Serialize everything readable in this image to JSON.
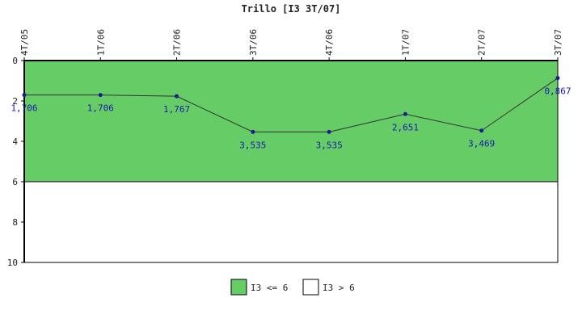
{
  "chart_data": {
    "type": "line",
    "title": "Trillo [I3 3T/07]",
    "categories": [
      "4T/05",
      "1T/06",
      "2T/06",
      "3T/06",
      "4T/06",
      "1T/07",
      "2T/07",
      "3T/07"
    ],
    "series": [
      {
        "values": [
          1.706,
          1.706,
          1.767,
          3.535,
          3.535,
          2.651,
          3.469,
          0.867
        ],
        "labels": [
          "1,706",
          "1,706",
          "1,767",
          "3,535",
          "3,535",
          "2,651",
          "3,469",
          "0,867"
        ]
      }
    ],
    "y_ticks": [
      "0",
      "2",
      "4",
      "6",
      "8",
      "10"
    ],
    "y_tick_values": [
      0,
      2,
      4,
      6,
      8,
      10
    ],
    "ylim": [
      0,
      10
    ],
    "y_inverted": true,
    "threshold": 6,
    "bands": [
      {
        "name": "I3 <= 6",
        "from": 0,
        "to": 6,
        "color": "#66cc66"
      },
      {
        "name": "I3 > 6",
        "from": 6,
        "to": 10,
        "color": "#ffffff"
      }
    ],
    "legend_position": "bottom",
    "line_color": "#333333",
    "marker_color": "#1a1a99",
    "label_color": "#1a1ab0"
  }
}
